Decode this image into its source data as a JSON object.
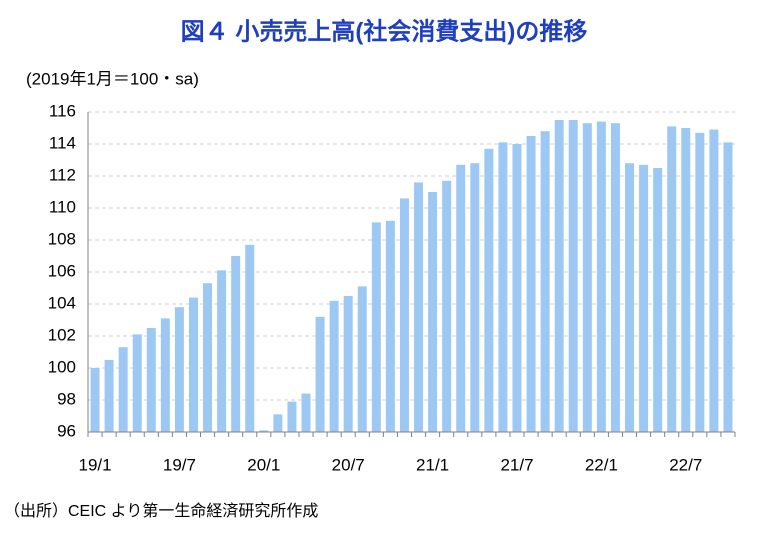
{
  "chart_data": {
    "type": "bar",
    "title": "図４ 小売売上高(社会消費支出)の推移",
    "y_label": "(2019年1月＝100・sa)",
    "source": "（出所）CEIC より第一生命経済研究所作成",
    "categories": [
      "19/1",
      null,
      null,
      null,
      null,
      null,
      "19/7",
      null,
      null,
      null,
      null,
      null,
      "20/1",
      null,
      null,
      null,
      null,
      null,
      "20/7",
      null,
      null,
      null,
      null,
      null,
      "21/1",
      null,
      null,
      null,
      null,
      null,
      "21/7",
      null,
      null,
      null,
      null,
      null,
      "22/1",
      null,
      null,
      null,
      null,
      null,
      "22/7",
      null,
      null,
      null
    ],
    "values": [
      100.0,
      100.5,
      101.3,
      102.1,
      102.5,
      103.1,
      103.8,
      104.4,
      105.3,
      106.1,
      107.0,
      107.7,
      96.1,
      97.1,
      97.9,
      98.4,
      103.2,
      104.2,
      104.5,
      105.1,
      109.1,
      109.2,
      110.6,
      111.6,
      111.0,
      111.7,
      112.7,
      112.8,
      113.7,
      114.1,
      114.0,
      114.5,
      114.8,
      115.5,
      115.5,
      115.3,
      115.4,
      115.3,
      112.8,
      112.7,
      112.5,
      115.1,
      115.0,
      114.7,
      114.9,
      114.1
    ],
    "color": "#9ec8f4",
    "ylim": [
      96,
      116
    ],
    "yticks": [
      96,
      98,
      100,
      102,
      104,
      106,
      108,
      110,
      112,
      114,
      116
    ],
    "grid": true
  }
}
